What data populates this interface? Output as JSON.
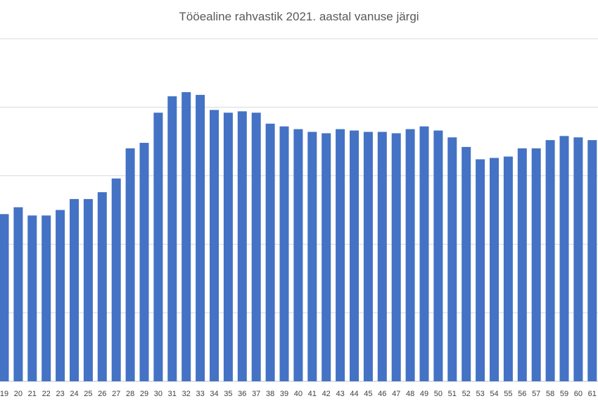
{
  "chart_data": {
    "type": "bar",
    "title": "Tööealine rahvastik 2021. aastal vanuse järgi",
    "xlabel": "",
    "ylabel": "",
    "ylim": [
      0,
      25
    ],
    "grid": true,
    "color": "#4472C4",
    "categories": [
      "19",
      "20",
      "21",
      "22",
      "23",
      "24",
      "25",
      "26",
      "27",
      "28",
      "29",
      "30",
      "31",
      "32",
      "33",
      "34",
      "35",
      "36",
      "37",
      "38",
      "39",
      "40",
      "41",
      "42",
      "43",
      "44",
      "45",
      "46",
      "47",
      "48",
      "49",
      "50",
      "51",
      "52",
      "53",
      "54",
      "55",
      "56",
      "57",
      "58",
      "59",
      "60",
      "61"
    ],
    "values": [
      12.2,
      12.7,
      12.1,
      12.1,
      12.5,
      13.3,
      13.3,
      13.8,
      14.8,
      17.0,
      17.4,
      19.6,
      20.8,
      21.1,
      20.9,
      19.8,
      19.6,
      19.7,
      19.6,
      18.8,
      18.6,
      18.4,
      18.2,
      18.1,
      18.4,
      18.3,
      18.2,
      18.2,
      18.1,
      18.4,
      18.6,
      18.3,
      17.8,
      17.1,
      16.2,
      16.3,
      16.4,
      17.0,
      17.0,
      17.6,
      17.9,
      17.8,
      17.6
    ]
  }
}
